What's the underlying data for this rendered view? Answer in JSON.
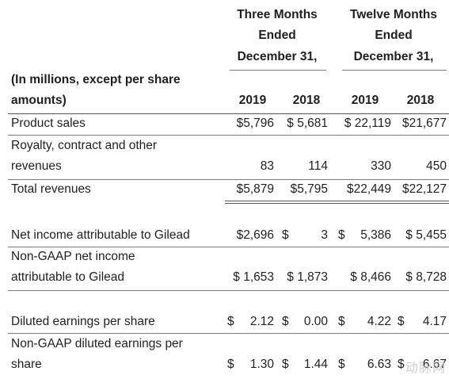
{
  "header": {
    "three_months": [
      "Three Months",
      "Ended",
      "December 31,"
    ],
    "twelve_months": [
      "Twelve Months",
      "Ended",
      "December 31,"
    ],
    "units_label": [
      "(In millions, except per share",
      "amounts)"
    ],
    "years": [
      "2019",
      "2018",
      "2019",
      "2018"
    ]
  },
  "rows": {
    "product_sales": {
      "label": "Product sales",
      "values": [
        "$5,796",
        "$ 5,681",
        "$ 22,119",
        "$21,677"
      ]
    },
    "royalty": {
      "label_lines": [
        "Royalty, contract and other",
        "revenues"
      ],
      "values": [
        "83",
        "114",
        "330",
        "450"
      ]
    },
    "total_revenues": {
      "label": "Total revenues",
      "values": [
        "$5,879",
        "$5,795",
        "$22,449",
        "$22,127"
      ]
    },
    "net_income": {
      "label": "Net income attributable to Gilead",
      "values": [
        "$2,696",
        "3",
        "5,386",
        "$ 5,455"
      ],
      "dollar_signs": [
        "$",
        "$"
      ]
    },
    "nongaap_net_income": {
      "label_lines": [
        "Non-GAAP net income",
        "attributable to Gilead"
      ],
      "values": [
        "$ 1,653",
        "$ 1,873",
        "$ 8,466",
        "$ 8,728"
      ]
    },
    "diluted_eps": {
      "label": "Diluted earnings per share",
      "dollar_signs": [
        "$",
        "$",
        "$",
        "$"
      ],
      "values": [
        "2.12",
        "0.00",
        "4.22",
        "4.17"
      ]
    },
    "nongaap_diluted_eps": {
      "label_lines": [
        "Non-GAAP diluted earnings per",
        "share"
      ],
      "dollar_signs": [
        "$",
        "$",
        "$",
        "$"
      ],
      "values": [
        "1.30",
        "1.44",
        "6.63",
        "6.67"
      ]
    }
  },
  "watermark": "动脉网"
}
